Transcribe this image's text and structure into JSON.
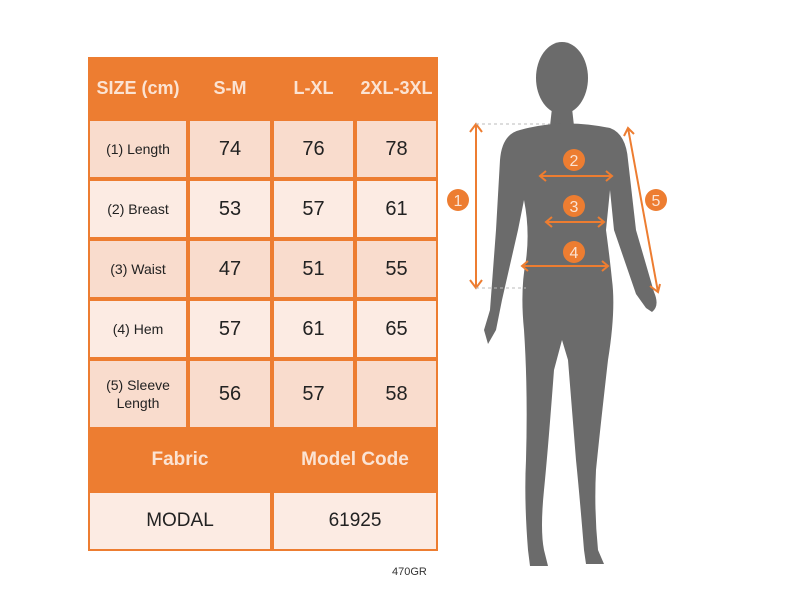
{
  "table": {
    "headers": [
      "SIZE (cm)",
      "S-M",
      "L-XL",
      "2XL-3XL"
    ],
    "rows": [
      {
        "label": "(1) Length",
        "values": [
          "74",
          "76",
          "78"
        ]
      },
      {
        "label": "(2) Breast",
        "values": [
          "53",
          "57",
          "61"
        ]
      },
      {
        "label": "(3) Waist",
        "values": [
          "47",
          "51",
          "55"
        ]
      },
      {
        "label": "(4) Hem",
        "values": [
          "57",
          "61",
          "65"
        ]
      },
      {
        "label": "(5) Sleeve Length",
        "values": [
          "56",
          "57",
          "58"
        ]
      }
    ],
    "footer_headers": [
      "Fabric",
      "Model Code"
    ],
    "footer_values": [
      "MODAL",
      "61925"
    ]
  },
  "product_code": "470GR",
  "diagram": {
    "markers": [
      "1",
      "2",
      "3",
      "4",
      "5"
    ]
  },
  "colors": {
    "accent": "#ed7d31",
    "silhouette": "#6b6b6b",
    "row_light": "#fcebe3",
    "row_dark": "#f9dccd"
  }
}
